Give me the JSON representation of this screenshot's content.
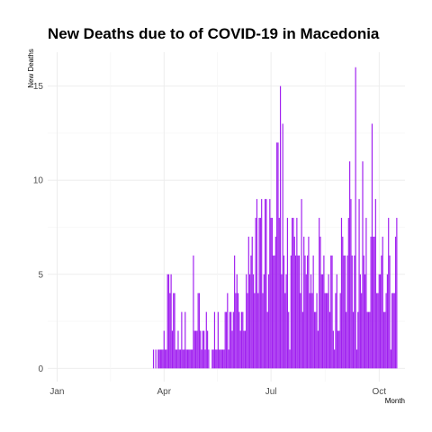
{
  "chart_data": {
    "type": "bar",
    "title": "New Deaths due to of COVID-19 in Macedonia",
    "xlabel": "Month",
    "ylabel": "New Deaths",
    "x_ticks": [
      {
        "label": "Jan",
        "day": 0
      },
      {
        "label": "Apr",
        "day": 91
      },
      {
        "label": "Jul",
        "day": 182
      },
      {
        "label": "Oct",
        "day": 274
      }
    ],
    "y_ticks": [
      0,
      5,
      10,
      15
    ],
    "xlim_days": [
      -8,
      296
    ],
    "ylim": [
      -0.7,
      16.8
    ],
    "grid": true,
    "bar_color": "#a020f0",
    "series": [
      {
        "start_date": "2020-03-23",
        "values": [
          1,
          0,
          1,
          0,
          1,
          1,
          1,
          1,
          1,
          2,
          1,
          1,
          5,
          5,
          4,
          5,
          2,
          4,
          4,
          1,
          1,
          2,
          1,
          1,
          3,
          1,
          1,
          3,
          1,
          1,
          1,
          1,
          1,
          1,
          6,
          2,
          2,
          2,
          4,
          4,
          2,
          1,
          2,
          2,
          1,
          3,
          2,
          1,
          0,
          0,
          1,
          1,
          3,
          1,
          1,
          3,
          1,
          1,
          1,
          1,
          1,
          3,
          3,
          4,
          1,
          3,
          3,
          2,
          3,
          6,
          4,
          5,
          4,
          3,
          2,
          3,
          3,
          2,
          2,
          5,
          4,
          7,
          5,
          6,
          7,
          5,
          4,
          8,
          9,
          4,
          8,
          8,
          9,
          4,
          5,
          9,
          9,
          3,
          5,
          9,
          8,
          8,
          6,
          6,
          7,
          12,
          12,
          8,
          15,
          5,
          13,
          6,
          4,
          5,
          8,
          3,
          1,
          6,
          8,
          8,
          7,
          6,
          8,
          6,
          6,
          4,
          9,
          3,
          7,
          6,
          5,
          6,
          7,
          4,
          5,
          4,
          6,
          3,
          3,
          4,
          2,
          8,
          7,
          5,
          5,
          6,
          4,
          4,
          4,
          5,
          3,
          6,
          6,
          2,
          1,
          4,
          5,
          2,
          2,
          4,
          8,
          7,
          6,
          6,
          3,
          6,
          8,
          11,
          9,
          6,
          3,
          6,
          16,
          1,
          3,
          9,
          5,
          4,
          11,
          6,
          5,
          8,
          3,
          3,
          3,
          7,
          13,
          7,
          7,
          9,
          4,
          4,
          5,
          5,
          6,
          7,
          3,
          3,
          4,
          5,
          8,
          6,
          1,
          4,
          4,
          4,
          7,
          8
        ]
      }
    ]
  }
}
